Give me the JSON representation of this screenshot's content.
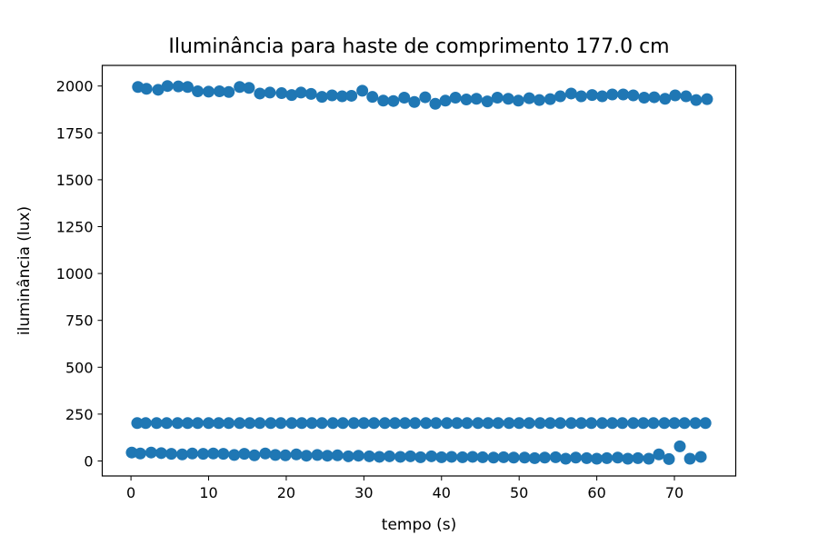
{
  "chart_data": {
    "type": "scatter",
    "title": "Iluminância para haste de comprimento 177.0 cm",
    "xlabel": "tempo (s)",
    "ylabel": "iluminância (lux)",
    "xlim": [
      -3.7,
      77.9
    ],
    "ylim": [
      -80,
      2110
    ],
    "xticks": [
      0,
      10,
      20,
      30,
      40,
      50,
      60,
      70
    ],
    "yticks": [
      0,
      250,
      500,
      750,
      1000,
      1250,
      1500,
      1750,
      2000
    ],
    "grid": false,
    "legend": "none",
    "marker_color": "#1f77b4",
    "series": [
      {
        "x": [
          0.9,
          2.0,
          3.5,
          4.7,
          6.1,
          7.3,
          8.6,
          10.0,
          11.4,
          12.6,
          14.0,
          15.2,
          16.6,
          17.9,
          19.4,
          20.7,
          21.9,
          23.2,
          24.6,
          25.9,
          27.2,
          28.4,
          29.8,
          31.1,
          32.5,
          33.8,
          35.2,
          36.5,
          37.9,
          39.2,
          40.5,
          41.8,
          43.2,
          44.5,
          45.9,
          47.2,
          48.6,
          49.9,
          51.3,
          52.6,
          54.0,
          55.3,
          56.7,
          58.0,
          59.4,
          60.7,
          62.0,
          63.4,
          64.7,
          66.1,
          67.4,
          68.8,
          70.1,
          71.5,
          72.8,
          74.2
        ],
        "y": [
          1995,
          1985,
          1980,
          2000,
          1998,
          1995,
          1972,
          1970,
          1972,
          1968,
          1995,
          1990,
          1960,
          1965,
          1962,
          1952,
          1965,
          1958,
          1942,
          1950,
          1945,
          1948,
          1975,
          1942,
          1922,
          1920,
          1938,
          1915,
          1940,
          1905,
          1922,
          1938,
          1928,
          1932,
          1918,
          1938,
          1932,
          1922,
          1935,
          1925,
          1930,
          1945,
          1960,
          1945,
          1952,
          1945,
          1955,
          1955,
          1950,
          1938,
          1940,
          1932,
          1950,
          1945,
          1925,
          1930
        ]
      },
      {
        "x": [
          0.8,
          1.9,
          3.3,
          4.6,
          6.0,
          7.3,
          8.6,
          10.0,
          11.3,
          12.6,
          14.0,
          15.3,
          16.6,
          18.0,
          19.3,
          20.7,
          22.0,
          23.3,
          24.6,
          26.0,
          27.3,
          28.7,
          30.0,
          31.3,
          32.7,
          34.0,
          35.3,
          36.6,
          38.0,
          39.3,
          40.7,
          42.0,
          43.3,
          44.7,
          46.0,
          47.3,
          48.7,
          50.0,
          51.3,
          52.7,
          54.0,
          55.3,
          56.7,
          58.0,
          59.3,
          60.7,
          62.0,
          63.3,
          64.7,
          66.0,
          67.3,
          68.7,
          70.0,
          71.3,
          72.7,
          74.0
        ],
        "y": [
          202,
          202,
          202,
          202,
          202,
          202,
          202,
          202,
          202,
          202,
          202,
          202,
          202,
          202,
          202,
          202,
          202,
          202,
          202,
          202,
          202,
          202,
          202,
          202,
          202,
          202,
          202,
          202,
          202,
          202,
          202,
          202,
          202,
          202,
          202,
          202,
          202,
          202,
          202,
          202,
          202,
          202,
          202,
          202,
          202,
          202,
          202,
          202,
          202,
          202,
          202,
          202,
          202,
          202,
          202,
          202
        ]
      },
      {
        "x": [
          0.1,
          1.2,
          2.6,
          3.9,
          5.2,
          6.6,
          7.9,
          9.3,
          10.6,
          11.9,
          13.3,
          14.6,
          15.9,
          17.3,
          18.6,
          19.9,
          21.3,
          22.6,
          24.0,
          25.3,
          26.6,
          28.0,
          29.3,
          30.7,
          32.0,
          33.3,
          34.7,
          36.0,
          37.3,
          38.7,
          40.0,
          41.3,
          42.7,
          44.0,
          45.3,
          46.7,
          48.0,
          49.3,
          50.7,
          52.0,
          53.3,
          54.7,
          56.0,
          57.3,
          58.7,
          60.0,
          61.3,
          62.7,
          64.0,
          65.3,
          66.7,
          68.0,
          69.3,
          70.7,
          72.0,
          73.4
        ],
        "y": [
          45,
          40,
          45,
          42,
          38,
          35,
          40,
          38,
          40,
          38,
          32,
          38,
          30,
          40,
          32,
          30,
          35,
          28,
          32,
          28,
          30,
          25,
          28,
          25,
          22,
          25,
          22,
          25,
          20,
          25,
          20,
          22,
          20,
          22,
          20,
          18,
          20,
          18,
          18,
          15,
          18,
          20,
          12,
          18,
          15,
          12,
          15,
          18,
          12,
          15,
          12,
          35,
          10,
          78,
          12,
          22
        ]
      }
    ]
  }
}
